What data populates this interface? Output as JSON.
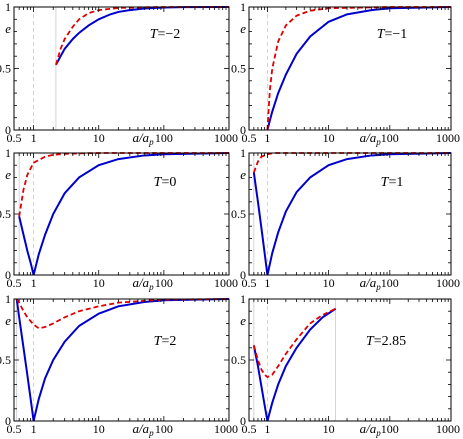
{
  "chart_data": [
    {
      "type": "line",
      "label": "T=−2",
      "xscale": "log",
      "xlabel": "a/a_p",
      "ylabel": "e",
      "xticks": [
        "0.5",
        "1",
        "10",
        "100",
        "1000"
      ],
      "yticks": [
        "0",
        "0.5",
        "1"
      ],
      "xlim": [
        0.5,
        1000
      ],
      "ylim": [
        0,
        1
      ],
      "ref_lines": [
        {
          "x": 1,
          "style": "dashed"
        },
        {
          "x": 2.2,
          "style": "solid"
        }
      ],
      "series": [
        {
          "style": "solid",
          "color": "#0000cc",
          "x": [
            2.2,
            3,
            4,
            5,
            7,
            10,
            15,
            20,
            30,
            50,
            100,
            200,
            1000
          ],
          "y": [
            0.53,
            0.66,
            0.74,
            0.79,
            0.85,
            0.9,
            0.94,
            0.96,
            0.975,
            0.988,
            0.996,
            0.999,
            1.0
          ]
        },
        {
          "style": "dashed",
          "color": "#e00000",
          "x": [
            2.2,
            2.6,
            3,
            4,
            5,
            7,
            10,
            20,
            50,
            100,
            1000
          ],
          "y": [
            0.53,
            0.66,
            0.74,
            0.84,
            0.9,
            0.95,
            0.975,
            0.992,
            0.998,
            1.0,
            1.0
          ]
        }
      ]
    },
    {
      "type": "line",
      "label": "T=−1",
      "xscale": "log",
      "xlabel": "a/a_p",
      "ylabel": "e",
      "xticks": [
        "0.5",
        "1",
        "10",
        "100",
        "1000"
      ],
      "yticks": [
        "0",
        "0.5",
        "1"
      ],
      "xlim": [
        0.5,
        1000
      ],
      "ylim": [
        0,
        1
      ],
      "ref_lines": [
        {
          "x": 1,
          "style": "dashed"
        }
      ],
      "series": [
        {
          "style": "solid",
          "color": "#0000cc",
          "x": [
            1,
            1.1,
            1.2,
            1.5,
            2,
            3,
            5,
            10,
            20,
            50,
            100,
            1000
          ],
          "y": [
            0,
            0.08,
            0.15,
            0.3,
            0.45,
            0.62,
            0.76,
            0.88,
            0.94,
            0.975,
            0.99,
            1.0
          ]
        },
        {
          "style": "dashed",
          "color": "#e00000",
          "x": [
            1,
            1.05,
            1.1,
            1.2,
            1.5,
            2,
            3,
            5,
            10,
            100,
            1000
          ],
          "y": [
            0,
            0.18,
            0.33,
            0.5,
            0.72,
            0.85,
            0.93,
            0.97,
            0.99,
            1.0,
            1.0
          ]
        }
      ]
    },
    {
      "type": "line",
      "label": "T=0",
      "xscale": "log",
      "xlabel": "a/a_p",
      "ylabel": "e",
      "xticks": [
        "0.5",
        "1",
        "10",
        "100",
        "1000"
      ],
      "yticks": [
        "0",
        "0.5",
        "1"
      ],
      "xlim": [
        0.5,
        1000
      ],
      "ylim": [
        0,
        1
      ],
      "ref_lines": [
        {
          "x": 0.6,
          "style": "solid"
        },
        {
          "x": 1,
          "style": "dashed"
        }
      ],
      "series": [
        {
          "style": "solid",
          "color": "#0000cc",
          "x": [
            0.6,
            0.7,
            0.8,
            0.9,
            1,
            1.2,
            1.5,
            2,
            3,
            5,
            10,
            20,
            50,
            100,
            1000
          ],
          "y": [
            0.48,
            0.33,
            0.2,
            0.1,
            0,
            0.17,
            0.33,
            0.5,
            0.67,
            0.8,
            0.9,
            0.95,
            0.98,
            0.99,
            1.0
          ]
        },
        {
          "style": "dashed",
          "color": "#e00000",
          "x": [
            0.6,
            0.7,
            0.8,
            1,
            1.5,
            2,
            3,
            5,
            10,
            100,
            1000
          ],
          "y": [
            0.48,
            0.7,
            0.82,
            0.92,
            0.97,
            0.985,
            0.993,
            0.997,
            1.0,
            1.0,
            1.0
          ]
        }
      ]
    },
    {
      "type": "line",
      "label": "T=1",
      "xscale": "log",
      "xlabel": "a/a_p",
      "ylabel": "e",
      "xticks": [
        "0.5",
        "1",
        "10",
        "100",
        "1000"
      ],
      "yticks": [
        "0",
        "0.5",
        "1"
      ],
      "xlim": [
        0.5,
        1000
      ],
      "ylim": [
        0,
        1
      ],
      "ref_lines": [
        {
          "x": 0.6,
          "style": "solid"
        },
        {
          "x": 1,
          "style": "dashed"
        }
      ],
      "series": [
        {
          "style": "solid",
          "color": "#0000cc",
          "x": [
            0.6,
            0.7,
            0.8,
            0.9,
            1,
            1.2,
            1.5,
            2,
            3,
            5,
            10,
            20,
            50,
            100,
            1000
          ],
          "y": [
            0.84,
            0.6,
            0.38,
            0.18,
            0,
            0.18,
            0.35,
            0.52,
            0.68,
            0.8,
            0.9,
            0.95,
            0.98,
            0.99,
            1.0
          ]
        },
        {
          "style": "dashed",
          "color": "#e00000",
          "x": [
            0.6,
            0.7,
            0.8,
            0.9,
            1,
            1.3,
            1.6,
            2,
            3,
            5,
            10,
            100,
            1000
          ],
          "y": [
            0.84,
            0.93,
            0.97,
            0.98,
            0.99,
            1.01,
            1.005,
            1.0,
            1.0,
            1.0,
            1.0,
            1.0,
            1.0
          ]
        }
      ]
    },
    {
      "type": "line",
      "label": "T=2",
      "xscale": "log",
      "xlabel": "a/a_p",
      "ylabel": "e",
      "xticks": [
        "0.5",
        "1",
        "10",
        "100",
        "1000"
      ],
      "yticks": [
        "0",
        "0.5",
        "1"
      ],
      "xlim": [
        0.5,
        1000
      ],
      "ylim": [
        0,
        1
      ],
      "ref_lines": [
        {
          "x": 0.55,
          "style": "solid"
        },
        {
          "x": 1,
          "style": "dashed"
        }
      ],
      "series": [
        {
          "style": "solid",
          "color": "#0000cc",
          "x": [
            0.55,
            0.6,
            0.7,
            0.8,
            0.9,
            1,
            1.2,
            1.5,
            2,
            3,
            5,
            10,
            20,
            50,
            100,
            1000
          ],
          "y": [
            1.0,
            0.85,
            0.6,
            0.38,
            0.18,
            0,
            0.18,
            0.35,
            0.5,
            0.65,
            0.78,
            0.88,
            0.94,
            0.975,
            0.99,
            1.0
          ]
        },
        {
          "style": "dashed",
          "color": "#e00000",
          "x": [
            0.55,
            0.6,
            0.7,
            0.8,
            1,
            1.2,
            1.5,
            2,
            3,
            5,
            10,
            20,
            50,
            100,
            1000
          ],
          "y": [
            1.0,
            0.97,
            0.9,
            0.85,
            0.79,
            0.76,
            0.77,
            0.8,
            0.85,
            0.9,
            0.94,
            0.97,
            0.985,
            0.995,
            1.0
          ]
        }
      ]
    },
    {
      "type": "line",
      "label": "T=2.85",
      "xscale": "log",
      "xlabel": "a/a_p",
      "ylabel": "e",
      "xticks": [
        "0.5",
        "1",
        "10",
        "100",
        "1000"
      ],
      "yticks": [
        "0",
        "0.5",
        "1"
      ],
      "xlim": [
        0.5,
        1000
      ],
      "ylim": [
        0,
        1
      ],
      "ref_lines": [
        {
          "x": 0.6,
          "style": "solid"
        },
        {
          "x": 1,
          "style": "dashed"
        },
        {
          "x": 13,
          "style": "solid"
        }
      ],
      "series": [
        {
          "style": "solid",
          "color": "#0000cc",
          "x": [
            0.6,
            0.7,
            0.8,
            0.9,
            1,
            1.2,
            1.5,
            2,
            3,
            5,
            8,
            13
          ],
          "y": [
            0.62,
            0.45,
            0.28,
            0.13,
            0,
            0.15,
            0.3,
            0.45,
            0.6,
            0.75,
            0.85,
            0.92
          ]
        },
        {
          "style": "dashed",
          "color": "#e00000",
          "x": [
            0.6,
            0.7,
            0.8,
            0.9,
            1,
            1.2,
            1.5,
            2,
            3,
            5,
            8,
            13
          ],
          "y": [
            0.62,
            0.5,
            0.42,
            0.38,
            0.36,
            0.38,
            0.45,
            0.55,
            0.67,
            0.8,
            0.87,
            0.92
          ]
        }
      ]
    }
  ]
}
